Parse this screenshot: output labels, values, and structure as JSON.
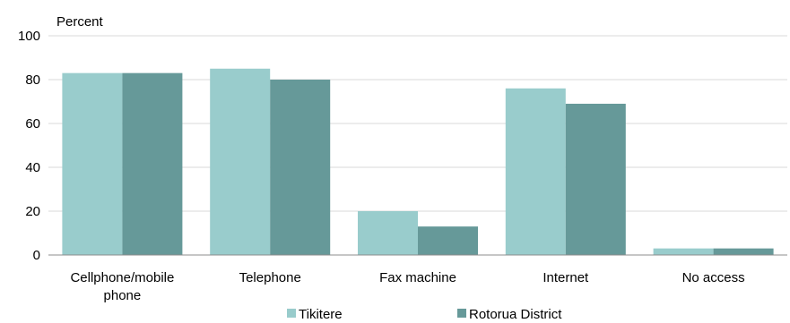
{
  "chart_data": {
    "type": "bar",
    "ylabel": "Percent",
    "ylim": [
      0,
      100
    ],
    "yticks": [
      0,
      20,
      40,
      60,
      80,
      100
    ],
    "grid": true,
    "legend_position": "bottom",
    "categories": [
      [
        "Cellphone/mobile",
        "phone"
      ],
      [
        "Telephone"
      ],
      [
        "Fax machine"
      ],
      [
        "Internet"
      ],
      [
        "No access"
      ]
    ],
    "series": [
      {
        "name": "Tikitere",
        "color": "#99cccc",
        "values": [
          83,
          85,
          20,
          76,
          3
        ]
      },
      {
        "name": "Rotorua District",
        "color": "#669999",
        "values": [
          83,
          80,
          13,
          69,
          3
        ]
      }
    ]
  }
}
